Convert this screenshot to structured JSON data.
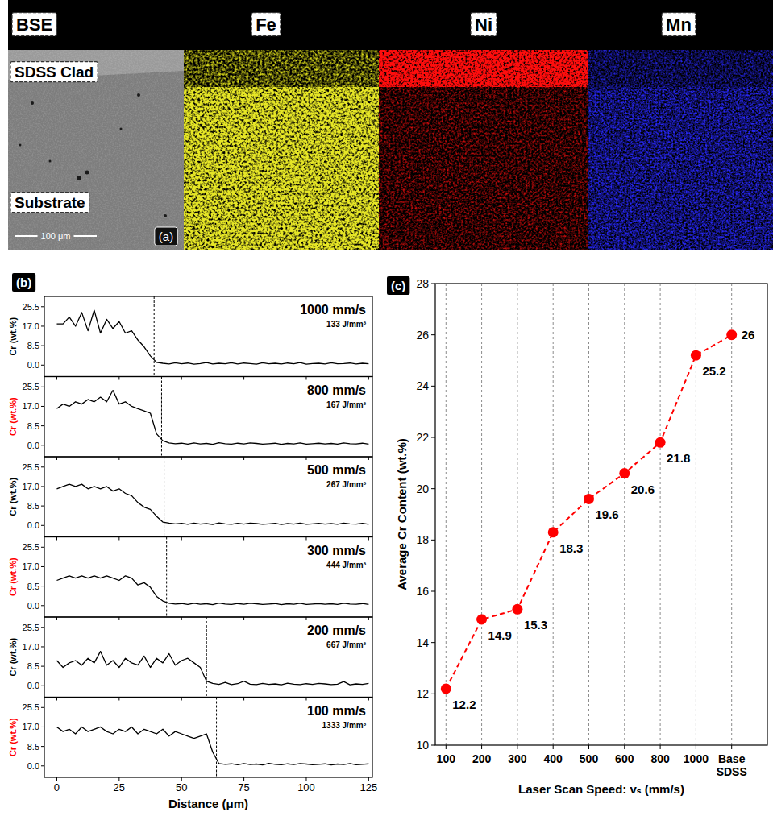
{
  "panel_a": {
    "label": "(a)",
    "maps": [
      "BSE",
      "Fe",
      "Ni",
      "Mn"
    ],
    "regions": [
      "SDSS Clad",
      "Substrate"
    ],
    "scale_bar": "100 μm"
  },
  "chart_data": [
    {
      "type": "line",
      "label": "(b)",
      "xlabel": "Distance (μm)",
      "ylabel": "Cr (wt.%)",
      "color": "#000000",
      "x": [
        0,
        2.5,
        5,
        7.5,
        10,
        12.5,
        15,
        17.5,
        20,
        22.5,
        25,
        27.5,
        30,
        32.5,
        35,
        37.5,
        40,
        42.5,
        45,
        47.5,
        50,
        52.5,
        55,
        57.5,
        60,
        62.5,
        65,
        67.5,
        70,
        72.5,
        75,
        77.5,
        80,
        82.5,
        85,
        87.5,
        90,
        92.5,
        95,
        97.5,
        100,
        102.5,
        105,
        107.5,
        110,
        112.5,
        115,
        117.5,
        120,
        122.5,
        125
      ],
      "xlim": [
        -5,
        126.5
      ],
      "xticks": [
        0,
        25,
        50,
        75,
        100,
        125
      ],
      "ylim": [
        -5,
        30
      ],
      "yticks": [
        {
          "value": 0,
          "label": "0.0"
        },
        8.5,
        {
          "value": 17,
          "label": "17.0"
        },
        25.5
      ],
      "series": [
        {
          "name": "1000 mm/s",
          "energy_density": "133 J/mm³",
          "interface_x": 39,
          "values": [
            18,
            18,
            21,
            17,
            23,
            15,
            24,
            14,
            20,
            16,
            19,
            14,
            15,
            11,
            8,
            4,
            1.2,
            0.8,
            0.5,
            1.0,
            0.6,
            0.9,
            0.4,
            0.7,
            1.1,
            0.5,
            0.8,
            0.6,
            1.0,
            0.5,
            0.9,
            0.7,
            0.4,
            1.0,
            0.6,
            0.8,
            0.5,
            0.9,
            0.6,
            1.1,
            0.4,
            0.7,
            0.8,
            0.5,
            1.0,
            0.6,
            0.7,
            0.9,
            0.5,
            0.8,
            0.6
          ]
        },
        {
          "name": "800 mm/s",
          "energy_density": "167 J/mm³",
          "interface_x": 42,
          "values": [
            16,
            18,
            17,
            19,
            18,
            20,
            19,
            21,
            19,
            24,
            18,
            19,
            17,
            16,
            15,
            14,
            5,
            2,
            1,
            0.7,
            0.9,
            0.5,
            1.0,
            0.6,
            0.8,
            0.4,
            1.1,
            0.7,
            0.5,
            0.9,
            0.6,
            1.0,
            0.8,
            0.5,
            0.7,
            0.9,
            0.4,
            0.8,
            0.6,
            1.0,
            0.5,
            0.7,
            0.9,
            0.6,
            0.8,
            0.5,
            1.0,
            0.7,
            0.6,
            0.9,
            0.5
          ]
        },
        {
          "name": "500 mm/s",
          "energy_density": "267 J/mm³",
          "interface_x": 43,
          "values": [
            16,
            17,
            18,
            17,
            18,
            16,
            17,
            16,
            17,
            15,
            16,
            14,
            13,
            10,
            8,
            7,
            4,
            1.5,
            1,
            0.7,
            0.9,
            0.5,
            1.0,
            0.6,
            0.8,
            0.4,
            1.1,
            0.7,
            0.5,
            0.9,
            0.6,
            1.0,
            0.8,
            0.5,
            0.7,
            0.9,
            0.4,
            0.8,
            0.6,
            1.0,
            0.5,
            0.7,
            0.9,
            0.6,
            0.8,
            0.5,
            1.0,
            0.7,
            0.6,
            0.9,
            0.5
          ]
        },
        {
          "name": "300 mm/s",
          "energy_density": "444 J/mm³",
          "interface_x": 44,
          "values": [
            11,
            12,
            13,
            12,
            13,
            12,
            13,
            12,
            13,
            12,
            11,
            13,
            12,
            9,
            10,
            8,
            4,
            2,
            1,
            0.7,
            0.9,
            0.5,
            1.0,
            0.6,
            0.8,
            0.4,
            1.1,
            0.7,
            0.5,
            0.9,
            0.6,
            1.0,
            0.8,
            0.5,
            0.7,
            0.9,
            0.4,
            0.8,
            0.6,
            1.0,
            0.5,
            0.7,
            0.9,
            0.6,
            0.8,
            0.5,
            1.0,
            0.7,
            0.6,
            0.9,
            0.5
          ]
        },
        {
          "name": "200 mm/s",
          "energy_density": "667 J/mm³",
          "interface_x": 60,
          "values": [
            11,
            8,
            10,
            11,
            9,
            12,
            10,
            15,
            9,
            11,
            8,
            12,
            10,
            9,
            13,
            8,
            12,
            10,
            14,
            9,
            11,
            12,
            10,
            8,
            2,
            1,
            0.6,
            1.5,
            0.5,
            0.9,
            2.0,
            0.7,
            0.5,
            1.0,
            0.6,
            0.8,
            0.4,
            1.1,
            0.7,
            0.5,
            0.9,
            0.6,
            1.0,
            0.8,
            0.5,
            0.7,
            1.8,
            0.4,
            0.8,
            0.6,
            1.0
          ]
        },
        {
          "name": "100 mm/s",
          "energy_density": "1333 J/mm³",
          "interface_x": 64,
          "values": [
            17,
            15,
            16,
            14,
            17,
            15,
            16,
            17,
            15,
            14,
            16,
            15,
            17,
            14,
            16,
            15,
            14,
            16,
            13,
            15,
            14,
            13,
            12,
            13,
            14,
            6,
            1,
            0.7,
            0.9,
            0.5,
            1.0,
            0.6,
            0.8,
            0.4,
            1.1,
            0.7,
            0.5,
            0.9,
            0.6,
            1.0,
            0.8,
            0.5,
            0.7,
            0.9,
            0.4,
            0.8,
            0.6,
            1.0,
            0.5,
            0.7,
            0.9
          ]
        }
      ]
    },
    {
      "type": "line",
      "label": "(c)",
      "xlabel": "Laser Scan Speed: vₛ (mm/s)",
      "ylabel": "Average Cr Content (wt.%)",
      "categories": [
        "100",
        "200",
        "300",
        "400",
        "500",
        "600",
        "800",
        "1000",
        "Base SDSS"
      ],
      "values": [
        12.2,
        14.9,
        15.3,
        18.3,
        19.6,
        20.6,
        21.8,
        25.2,
        26
      ],
      "color": "#ff0000",
      "marker": "circle",
      "line_style": "dashed",
      "data_labels": true,
      "grid": true,
      "ylim": [
        10,
        28
      ],
      "yticks": [
        10,
        12,
        14,
        16,
        18,
        20,
        22,
        24,
        26,
        28
      ]
    }
  ]
}
